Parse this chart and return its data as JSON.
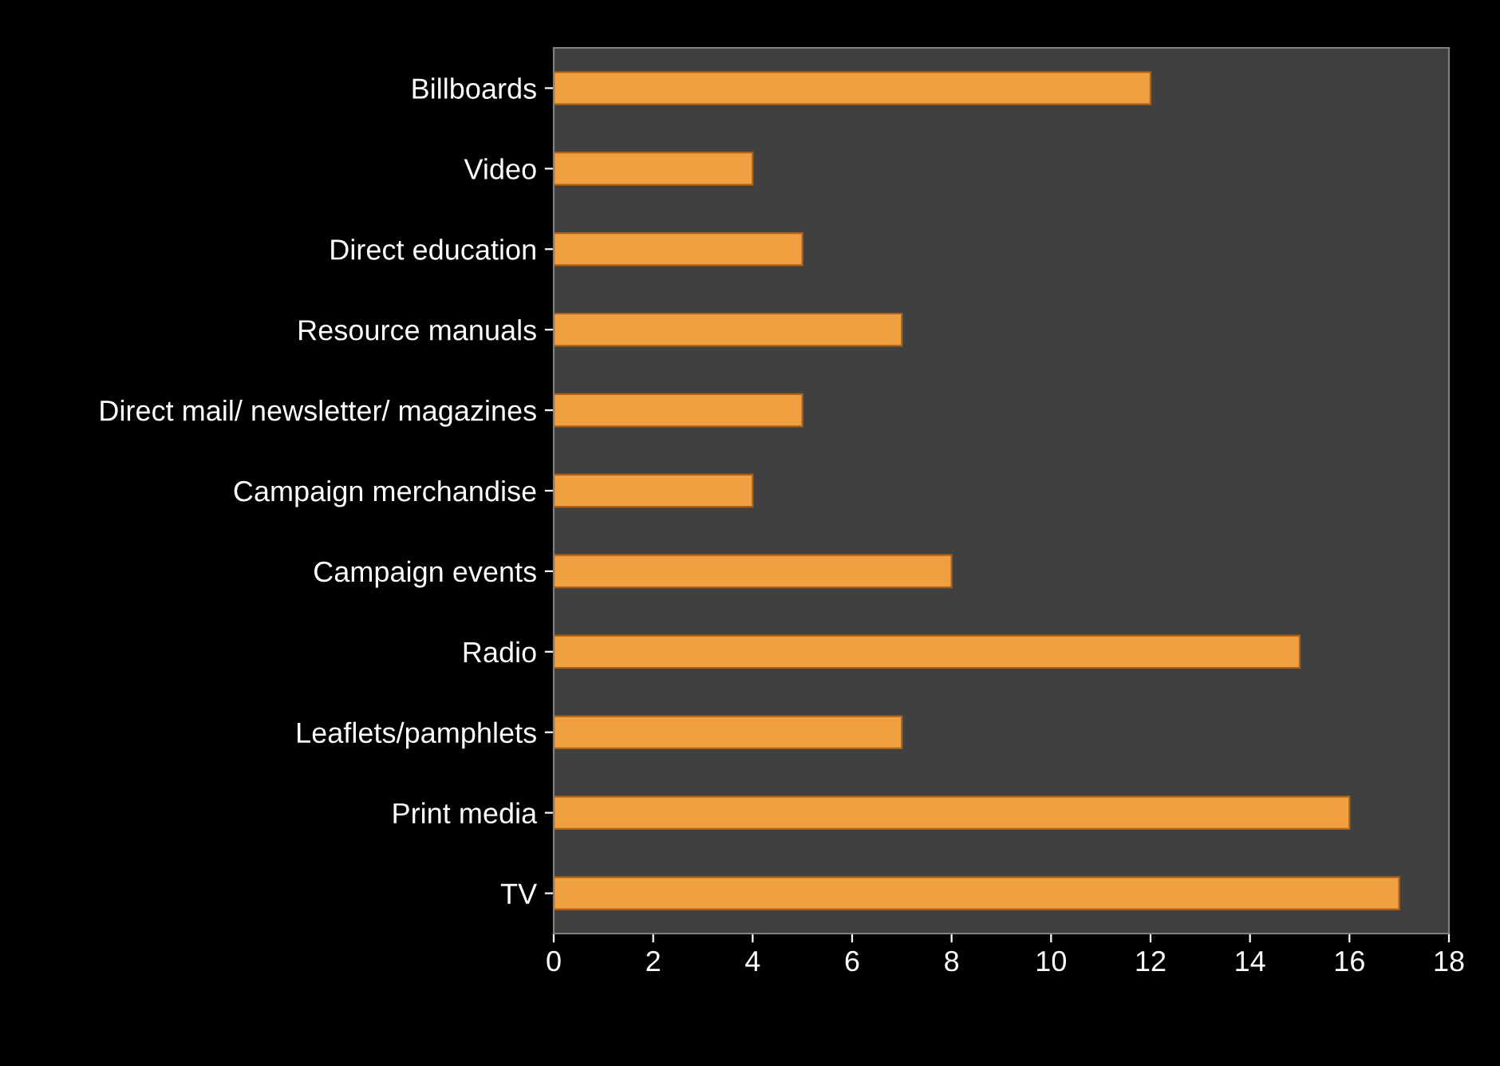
{
  "chart_data": {
    "type": "bar",
    "orientation": "horizontal",
    "categories": [
      "Billboards",
      "Video",
      "Direct education",
      "Resource manuals",
      "Direct mail/ newsletter/ magazines",
      "Campaign merchandise",
      "Campaign events",
      "Radio",
      "Leaflets/pamphlets",
      "Print media",
      "TV"
    ],
    "values": [
      12,
      4,
      5,
      7,
      5,
      4,
      8,
      15,
      7,
      16,
      17
    ],
    "color": "#f0a040",
    "xlim": [
      0,
      18
    ],
    "xticks": [
      0,
      2,
      4,
      6,
      8,
      10,
      12,
      14,
      16,
      18
    ]
  }
}
